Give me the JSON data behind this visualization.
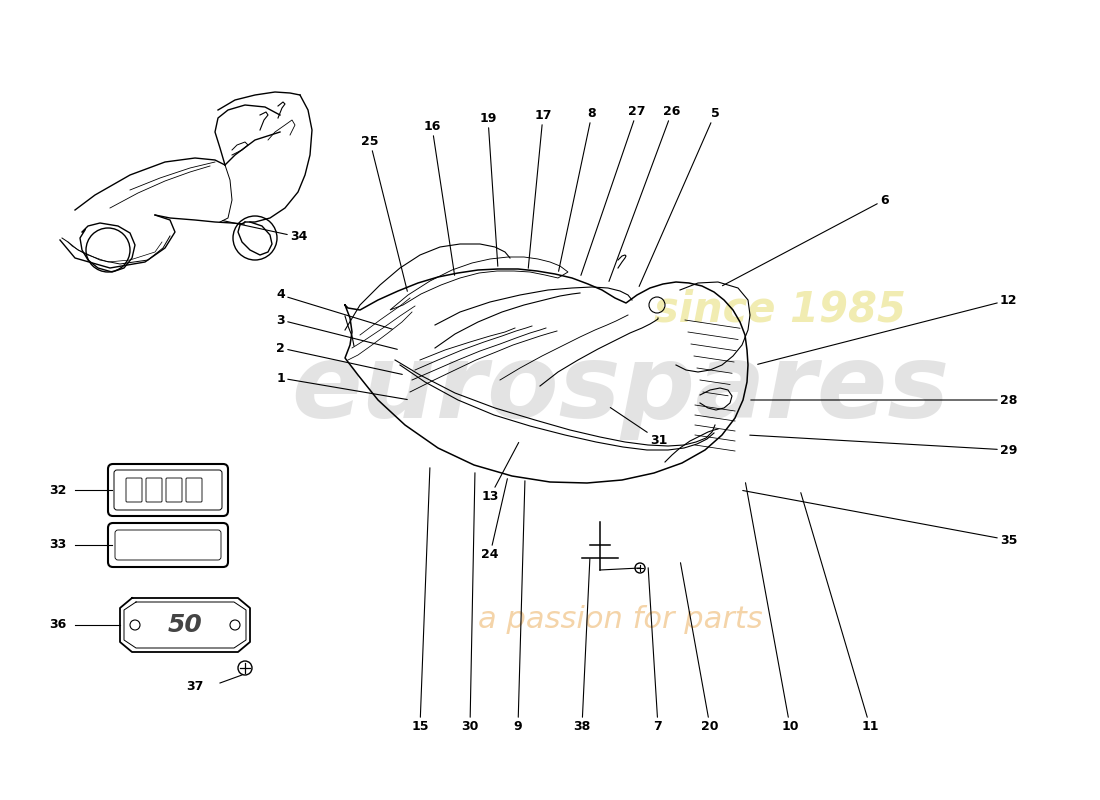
{
  "background_color": "#ffffff",
  "line_color": "#000000",
  "wm1_text": "eurospares",
  "wm2_text": "since 1985",
  "wm3_text": "a passion for parts",
  "wm1_color": "#c8c8c8",
  "wm2_color": "#e8e080",
  "wm3_color": "#e8a040",
  "label_fontsize": 9,
  "label_fontweight": "bold",
  "line_width": 1.0
}
